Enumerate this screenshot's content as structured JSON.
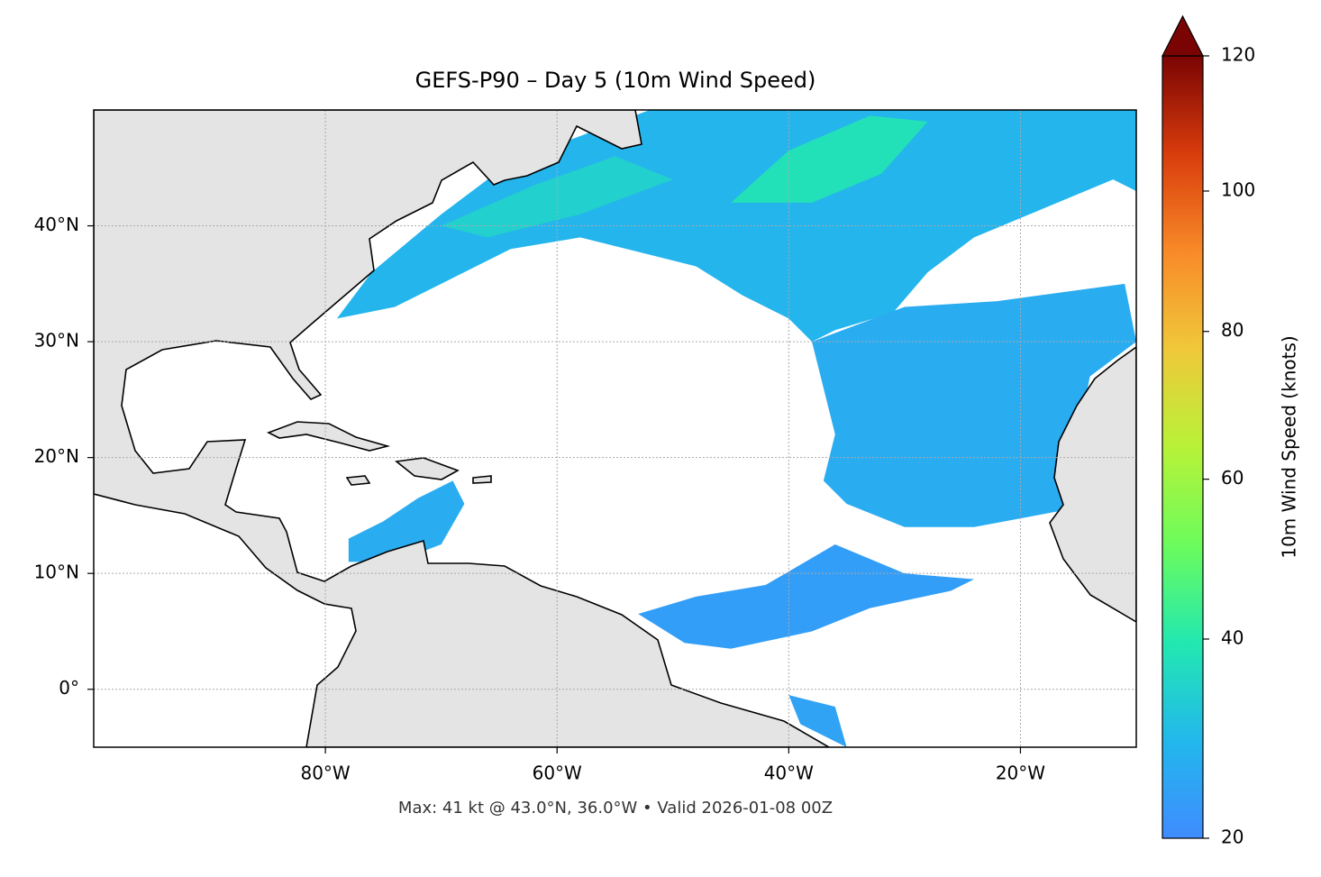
{
  "chart_data": {
    "type": "map",
    "title": "GEFS-P90 – Day 5 (10m Wind Speed)",
    "footer": "Max: 41 kt @ 43.0°N, 36.0°W • Valid 2026-01-08 00Z",
    "xlim": [
      -100,
      -10
    ],
    "ylim": [
      -5,
      50
    ],
    "xticks": [
      {
        "value": -80,
        "label": "80°W"
      },
      {
        "value": -60,
        "label": "60°W"
      },
      {
        "value": -40,
        "label": "40°W"
      },
      {
        "value": -20,
        "label": "20°W"
      }
    ],
    "yticks": [
      {
        "value": 0,
        "label": "0°"
      },
      {
        "value": 10,
        "label": "10°N"
      },
      {
        "value": 20,
        "label": "20°N"
      },
      {
        "value": 30,
        "label": "30°N"
      },
      {
        "value": 40,
        "label": "40°N"
      }
    ],
    "grid": true,
    "wind_areas": [
      {
        "speed": 28,
        "polygon": [
          [
            -79,
            32
          ],
          [
            -76,
            36
          ],
          [
            -70,
            41
          ],
          [
            -66,
            44
          ],
          [
            -60,
            47
          ],
          [
            -52,
            50
          ],
          [
            -10,
            50
          ],
          [
            -10,
            43
          ],
          [
            -12,
            44
          ],
          [
            -18,
            41.5
          ],
          [
            -24,
            39
          ],
          [
            -28,
            36
          ],
          [
            -31,
            32.5
          ],
          [
            -36,
            31
          ],
          [
            -38,
            30
          ],
          [
            -40,
            32
          ],
          [
            -44,
            34
          ],
          [
            -48,
            36.5
          ],
          [
            -52,
            37.5
          ],
          [
            -58,
            39
          ],
          [
            -64,
            38
          ],
          [
            -70,
            35
          ],
          [
            -74,
            33
          ]
        ]
      },
      {
        "speed": 34,
        "polygon": [
          [
            -70,
            40
          ],
          [
            -62,
            43.5
          ],
          [
            -55,
            46
          ],
          [
            -50,
            44
          ],
          [
            -58,
            41
          ],
          [
            -66,
            39
          ]
        ]
      },
      {
        "speed": 38,
        "polygon": [
          [
            -45,
            42
          ],
          [
            -40,
            46.5
          ],
          [
            -33,
            49.5
          ],
          [
            -28,
            49
          ],
          [
            -32,
            44.5
          ],
          [
            -38,
            42
          ]
        ]
      },
      {
        "speed": 26,
        "polygon": [
          [
            -38,
            30
          ],
          [
            -30,
            33
          ],
          [
            -22,
            33.5
          ],
          [
            -11,
            35
          ],
          [
            -10,
            30
          ],
          [
            -14,
            27
          ],
          [
            -15,
            22
          ],
          [
            -16,
            15.5
          ],
          [
            -24,
            14
          ],
          [
            -30,
            14
          ],
          [
            -35,
            16
          ],
          [
            -37,
            18
          ],
          [
            -36,
            22
          ],
          [
            -37,
            26
          ]
        ]
      },
      {
        "speed": 23,
        "polygon": [
          [
            -53,
            6.5
          ],
          [
            -48,
            8
          ],
          [
            -42,
            9
          ],
          [
            -36,
            12.5
          ],
          [
            -30,
            10
          ],
          [
            -24,
            9.5
          ],
          [
            -26,
            8.5
          ],
          [
            -33,
            7
          ],
          [
            -38,
            5
          ],
          [
            -45,
            3.5
          ],
          [
            -49,
            4
          ]
        ]
      },
      {
        "speed": 26,
        "polygon": [
          [
            -78,
            13
          ],
          [
            -75,
            14.5
          ],
          [
            -72,
            16.5
          ],
          [
            -69,
            18
          ],
          [
            -68,
            16
          ],
          [
            -70,
            12.5
          ],
          [
            -74,
            11
          ],
          [
            -78,
            11
          ]
        ]
      },
      {
        "speed": 24,
        "polygon": [
          [
            -40,
            -0.5
          ],
          [
            -36,
            -1.5
          ],
          [
            -35,
            -5
          ],
          [
            -39,
            -3
          ]
        ]
      }
    ],
    "colorbar": {
      "label": "10m Wind Speed (knots)",
      "lim": [
        20,
        120
      ],
      "ticks": [
        20,
        40,
        60,
        80,
        100,
        120
      ],
      "gamma": 0.85,
      "extend": "max",
      "colors": [
        "#3f8cff",
        "#22b8ec",
        "#22e8b0",
        "#6cfc5c",
        "#b8f238",
        "#f0c83a",
        "#f88a28",
        "#d83c0c",
        "#7a0403"
      ]
    }
  }
}
